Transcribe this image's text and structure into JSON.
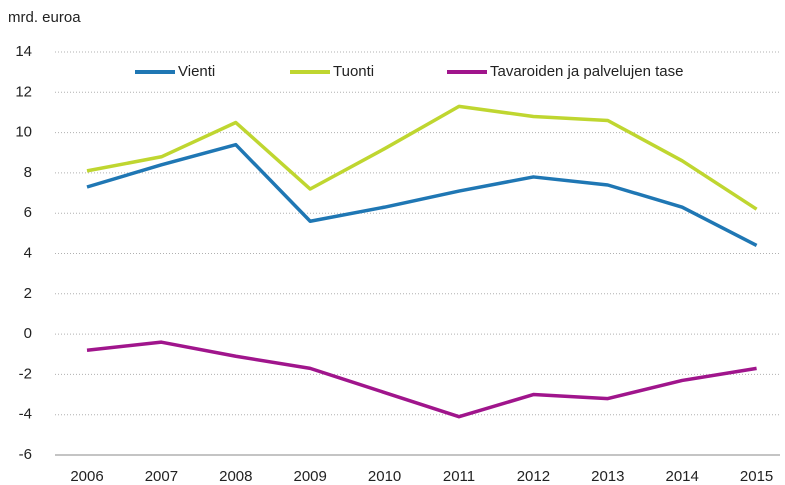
{
  "chart_data": {
    "type": "line",
    "y_label": "mrd. euroa",
    "categories": [
      "2006",
      "2007",
      "2008",
      "2009",
      "2010",
      "2011",
      "2012",
      "2013",
      "2014",
      "2015"
    ],
    "series": [
      {
        "name": "Vienti",
        "color": "#1f77b4",
        "values": [
          7.3,
          8.4,
          9.4,
          5.6,
          6.3,
          7.1,
          7.8,
          7.4,
          6.3,
          4.4
        ]
      },
      {
        "name": "Tuonti",
        "color": "#bfd630",
        "values": [
          8.1,
          8.8,
          10.5,
          7.2,
          9.2,
          11.3,
          10.8,
          10.6,
          8.6,
          6.2
        ]
      },
      {
        "name": "Tavaroiden ja palvelujen tase",
        "color": "#a0158c",
        "values": [
          -0.8,
          -0.4,
          -1.1,
          -1.7,
          -2.9,
          -4.1,
          -3.0,
          -3.2,
          -2.3,
          -1.7
        ]
      }
    ],
    "ylim": [
      -6,
      14
    ],
    "yticks": [
      -6,
      -4,
      -2,
      0,
      2,
      4,
      6,
      8,
      10,
      12,
      14
    ],
    "grid": true
  }
}
